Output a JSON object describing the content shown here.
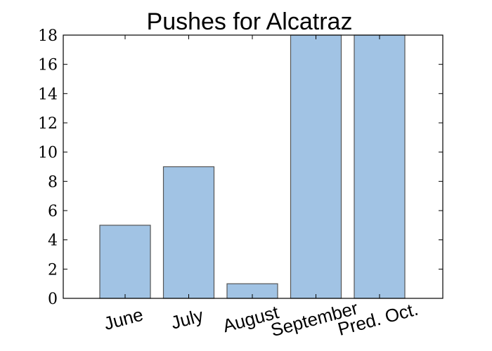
{
  "chart_data": {
    "type": "bar",
    "title": "Pushes for Alcatraz",
    "categories": [
      "June",
      "July",
      "August",
      "September",
      "Pred. Oct."
    ],
    "values": [
      5,
      9,
      1,
      18,
      18
    ],
    "ylim": [
      0,
      18
    ],
    "yticks": [
      "0",
      "2",
      "4",
      "6",
      "8",
      "10",
      "12",
      "14",
      "16",
      "18"
    ],
    "bar_color": "#a1c3e4",
    "bar_edge_color": "#555555",
    "grid": false,
    "legend": "none"
  }
}
